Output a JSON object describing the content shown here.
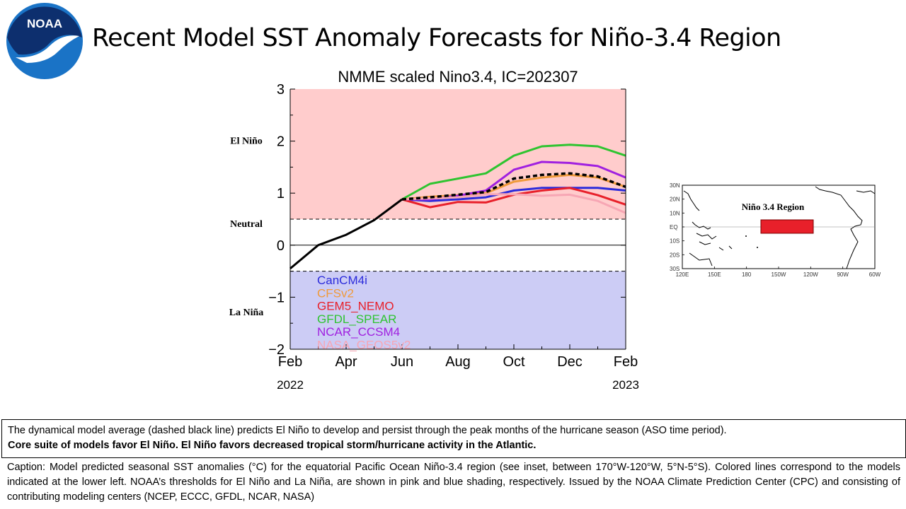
{
  "slide": {
    "logo_text": "NOAA",
    "title": "Recent Model SST Anomaly Forecasts for Niño-3.4 Region"
  },
  "colors": {
    "el_nino_shading": "#ffcccc",
    "la_nina_shading": "#ccccf5",
    "CanCM4i": "#2b2bdb",
    "CFSv2": "#f09a3a",
    "GEM5_NEMO": "#e8202a",
    "GFDL_SPEAR": "#2ec430",
    "NCAR_CCSM4": "#a020e0",
    "NASA_GEOS5v2": "#f7a6b4",
    "model_average": "#000000",
    "noaa_blue": "#1a73c6",
    "noaa_navy": "#0d2f6e"
  },
  "chart_data": {
    "type": "line",
    "title": "NMME scaled Nino3.4, IC=202307",
    "x_tick_labels": [
      "Feb",
      "Apr",
      "Jun",
      "Aug",
      "Oct",
      "Dec",
      "Feb"
    ],
    "year_labels": [
      "2022",
      "2023"
    ],
    "x_range": [
      0,
      12
    ],
    "ylim": [
      -2,
      3
    ],
    "y_ticks": [
      -2,
      -1,
      0,
      1,
      2,
      3
    ],
    "y_tick_labels": [
      "−2",
      "−1",
      "0",
      "1",
      "2",
      "3"
    ],
    "thresholds": {
      "el_nino": 0.5,
      "la_nina": -0.5
    },
    "regime_labels": [
      "El Niño",
      "Neutral",
      "La Niña"
    ],
    "observed": {
      "x": [
        0,
        1,
        2,
        3,
        4
      ],
      "y": [
        -0.45,
        0.0,
        0.2,
        0.48,
        0.88
      ]
    },
    "series": [
      {
        "name": "CanCM4i",
        "x": [
          4,
          5,
          6,
          7,
          8,
          9,
          10,
          11,
          12
        ],
        "y": [
          0.88,
          0.85,
          0.88,
          0.92,
          1.05,
          1.1,
          1.1,
          1.1,
          1.05
        ]
      },
      {
        "name": "CFSv2",
        "x": [
          4,
          5,
          6,
          7,
          8,
          9,
          10,
          11,
          12
        ],
        "y": [
          0.88,
          0.93,
          0.96,
          1.0,
          1.22,
          1.3,
          1.35,
          1.3,
          1.12
        ]
      },
      {
        "name": "GEM5_NEMO",
        "x": [
          4,
          5,
          6,
          7,
          8,
          9,
          10,
          11,
          12
        ],
        "y": [
          0.88,
          0.73,
          0.83,
          0.82,
          0.97,
          1.05,
          1.1,
          0.96,
          0.78
        ]
      },
      {
        "name": "GFDL_SPEAR",
        "x": [
          4,
          5,
          6,
          7,
          8,
          9,
          10,
          11,
          12
        ],
        "y": [
          0.88,
          1.18,
          1.28,
          1.38,
          1.72,
          1.9,
          1.93,
          1.9,
          1.72
        ]
      },
      {
        "name": "NCAR_CCSM4",
        "x": [
          4,
          5,
          6,
          7,
          8,
          9,
          10,
          11,
          12
        ],
        "y": [
          0.88,
          0.88,
          0.95,
          1.05,
          1.45,
          1.6,
          1.58,
          1.52,
          1.3
        ]
      },
      {
        "name": "NASA_GEOS5v2",
        "x": [
          4,
          5,
          6,
          7,
          8,
          9,
          10,
          11,
          12
        ],
        "y": [
          0.88,
          0.9,
          0.92,
          0.98,
          0.98,
          0.95,
          0.97,
          0.85,
          0.62
        ]
      },
      {
        "name": "model_average",
        "dashed": true,
        "x": [
          4,
          5,
          6,
          7,
          8,
          9,
          10,
          11,
          12
        ],
        "y": [
          0.88,
          0.92,
          0.97,
          1.02,
          1.28,
          1.35,
          1.38,
          1.32,
          1.12
        ]
      }
    ],
    "legend": [
      "CanCM4i",
      "CFSv2",
      "GEM5_NEMO",
      "GFDL_SPEAR",
      "NCAR_CCSM4",
      "NASA_GEOS5v2"
    ],
    "legend_placement": "lower-left"
  },
  "inset": {
    "region_label": "Niño 3.4 Region",
    "lat_labels": [
      "30N",
      "20N",
      "10N",
      "EQ",
      "10S",
      "20S",
      "30S"
    ],
    "lon_labels": [
      "120E",
      "150E",
      "180",
      "150W",
      "120W",
      "90W",
      "60W"
    ]
  },
  "summary": {
    "line1": "The dynamical model average (dashed black line) predicts El Niño to develop and persist through the peak months of the hurricane season (ASO time period).",
    "line2": "Core suite of models favor El Niño. El Niño favors decreased tropical storm/hurricane activity in the Atlantic."
  },
  "caption": "Caption: Model predicted seasonal SST anomalies (°C) for the equatorial Pacific Ocean Niño-3.4 region (see inset, between 170°W-120°W, 5°N-5°S). Colored lines correspond to the models indicated at the lower left. NOAA’s thresholds for El Niño and La Niña, are shown in pink and blue shading, respectively. Issued by the NOAA Climate Prediction Center (CPC) and consisting of contributing modeling centers (NCEP, ECCC, GFDL, NCAR, NASA)"
}
